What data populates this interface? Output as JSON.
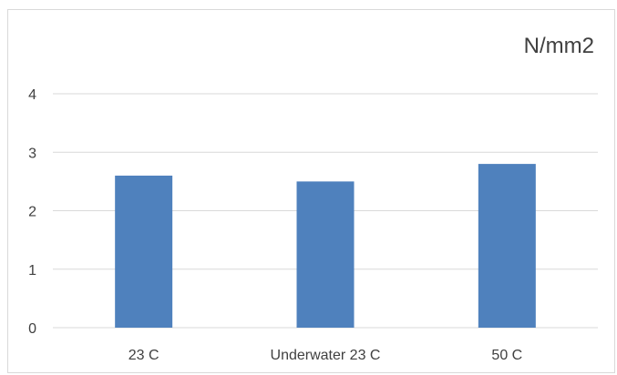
{
  "chart_data": {
    "type": "bar",
    "title": "N/mm2",
    "xlabel": "",
    "ylabel": "",
    "categories": [
      "23 C",
      "Underwater 23 C",
      "50 C"
    ],
    "values": [
      2.6,
      2.5,
      2.8
    ],
    "ylim": [
      0,
      4
    ],
    "yticks": [
      "0",
      "1",
      "2",
      "3",
      "4"
    ],
    "grid": true,
    "legend": "none",
    "colors": {
      "bar": "#4f81bd",
      "grid": "#d9d9d9",
      "axis": "#d9d9d9",
      "text": "#404040",
      "border": "#d9d9d9"
    }
  }
}
